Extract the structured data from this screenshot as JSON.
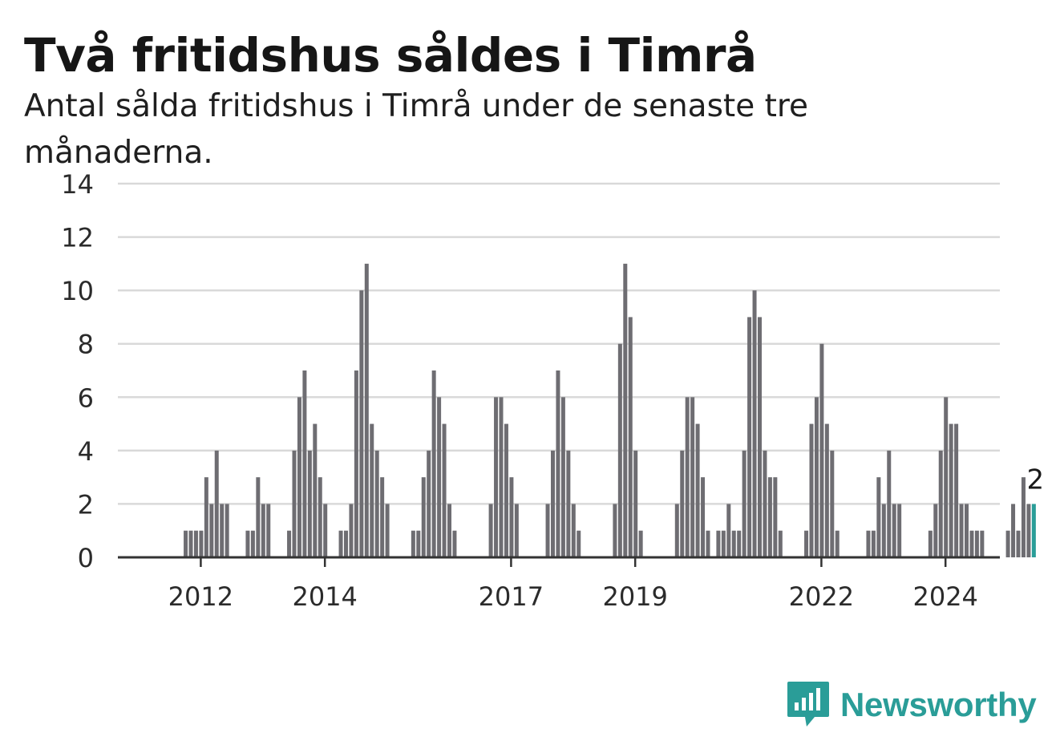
{
  "header": {
    "title": "Två fritidshus såldes i Timrå",
    "subtitle": "Antal sålda fritidshus i Timrå under de senaste tre månaderna."
  },
  "chart_data": {
    "type": "bar",
    "title": "Två fritidshus såldes i Timrå",
    "subtitle": "Antal sålda fritidshus i Timrå under de senaste tre månaderna.",
    "xlabel": "",
    "ylabel": "",
    "ylim": [
      0,
      14
    ],
    "yticks": [
      0,
      2,
      4,
      6,
      8,
      10,
      12,
      14
    ],
    "xtick_labels": [
      "2012",
      "2014",
      "2017",
      "2019",
      "2022",
      "2024"
    ],
    "grid": true,
    "bar_color": "#6e6d72",
    "highlight_color": "#2a9d98",
    "highlight_label": "2",
    "values": [
      0,
      0,
      0,
      0,
      0,
      0,
      0,
      0,
      0,
      1,
      1,
      1,
      1,
      3,
      2,
      4,
      2,
      2,
      0,
      0,
      0,
      1,
      1,
      3,
      2,
      2,
      0,
      0,
      0,
      1,
      4,
      6,
      7,
      4,
      5,
      3,
      2,
      0,
      0,
      1,
      1,
      2,
      7,
      10,
      11,
      5,
      4,
      3,
      2,
      0,
      0,
      0,
      0,
      1,
      1,
      3,
      4,
      7,
      6,
      5,
      2,
      1,
      0,
      0,
      0,
      0,
      0,
      0,
      2,
      6,
      6,
      5,
      3,
      2,
      0,
      0,
      0,
      0,
      0,
      2,
      4,
      7,
      6,
      4,
      2,
      1,
      0,
      0,
      0,
      0,
      0,
      0,
      2,
      8,
      11,
      9,
      4,
      1,
      0,
      0,
      0,
      0,
      0,
      0,
      2,
      4,
      6,
      6,
      5,
      3,
      1,
      0,
      1,
      1,
      2,
      1,
      1,
      4,
      9,
      10,
      9,
      4,
      3,
      3,
      1,
      0,
      0,
      0,
      0,
      1,
      5,
      6,
      8,
      5,
      4,
      1,
      0,
      0,
      0,
      0,
      0,
      1,
      1,
      3,
      2,
      4,
      2,
      2,
      0,
      0,
      0,
      0,
      0,
      1,
      2,
      4,
      6,
      5,
      5,
      2,
      2,
      1,
      1,
      1,
      0,
      0,
      0,
      0,
      1,
      2,
      1,
      3,
      2,
      2
    ]
  },
  "brand": {
    "name": "Newsworthy",
    "logo_icon": "chart-speech-bubble-icon",
    "color": "#2a9d98"
  }
}
